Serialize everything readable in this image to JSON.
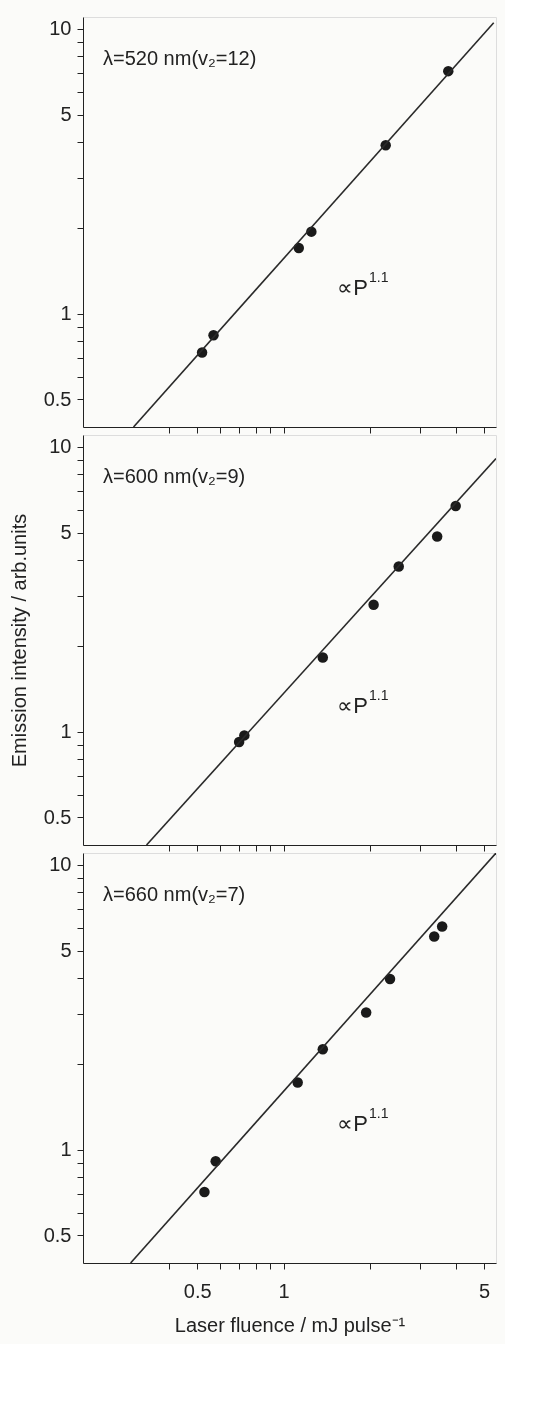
{
  "chart_data": [
    {
      "type": "scatter",
      "annotations": [
        "λ=520 nm(v₂=12)",
        "∝P$^{1.1}$"
      ],
      "log": "xy",
      "grid": false,
      "tick_labels": "y",
      "xlim": [
        0.2,
        5.5
      ],
      "ylim": [
        0.4,
        11
      ],
      "xticks": [
        {
          "value": 0.4,
          "label": null
        },
        0.5,
        {
          "value": 0.6,
          "label": null
        },
        {
          "value": 0.7,
          "label": null
        },
        {
          "value": 0.8,
          "label": null
        },
        {
          "value": 0.9,
          "label": null
        },
        1,
        {
          "value": 2,
          "label": null
        },
        {
          "value": 3,
          "label": null
        },
        {
          "value": 4,
          "label": null
        },
        5
      ],
      "yticks": [
        0.5,
        {
          "value": 0.6,
          "label": null
        },
        {
          "value": 0.7,
          "label": null
        },
        {
          "value": 0.8,
          "label": null
        },
        {
          "value": 0.9,
          "label": null
        },
        1,
        {
          "value": 2,
          "label": null
        },
        {
          "value": 3,
          "label": null
        },
        {
          "value": 4,
          "label": null
        },
        5,
        {
          "value": 6,
          "label": null
        },
        {
          "value": 7,
          "label": null
        },
        {
          "value": 8,
          "label": null
        },
        {
          "value": 9,
          "label": null
        },
        10
      ],
      "series": [
        {
          "marker": "circle",
          "color": "#1a1a1a",
          "x": [
            0.52,
            0.57,
            1.13,
            1.25,
            2.27,
            3.75
          ],
          "values": [
            0.73,
            0.84,
            1.7,
            1.94,
            3.9,
            7.1
          ]
        },
        {
          "type": "line",
          "marker": "none",
          "color": "#2a2a2a",
          "x": [
            0.3,
            5.4
          ],
          "values": [
            0.4,
            10.5
          ]
        }
      ]
    },
    {
      "type": "scatter",
      "ylabel": "Emission intensity / arb.units",
      "annotations": [
        "λ=600 nm(v₂=9)",
        "∝P$^{1.1}$"
      ],
      "log": "xy",
      "grid": false,
      "tick_labels": "y",
      "xlim": [
        0.2,
        5.5
      ],
      "ylim": [
        0.4,
        11
      ],
      "xticks": [
        {
          "value": 0.4,
          "label": null
        },
        0.5,
        {
          "value": 0.6,
          "label": null
        },
        {
          "value": 0.7,
          "label": null
        },
        {
          "value": 0.8,
          "label": null
        },
        {
          "value": 0.9,
          "label": null
        },
        1,
        {
          "value": 2,
          "label": null
        },
        {
          "value": 3,
          "label": null
        },
        {
          "value": 4,
          "label": null
        },
        5
      ],
      "yticks": [
        0.5,
        {
          "value": 0.6,
          "label": null
        },
        {
          "value": 0.7,
          "label": null
        },
        {
          "value": 0.8,
          "label": null
        },
        {
          "value": 0.9,
          "label": null
        },
        1,
        {
          "value": 2,
          "label": null
        },
        {
          "value": 3,
          "label": null
        },
        {
          "value": 4,
          "label": null
        },
        5,
        {
          "value": 6,
          "label": null
        },
        {
          "value": 7,
          "label": null
        },
        {
          "value": 8,
          "label": null
        },
        {
          "value": 9,
          "label": null
        },
        10
      ],
      "series": [
        {
          "marker": "circle",
          "color": "#1a1a1a",
          "x": [
            0.7,
            0.73,
            1.37,
            2.06,
            2.52,
            3.43,
            3.98
          ],
          "values": [
            0.92,
            0.97,
            1.82,
            2.79,
            3.8,
            4.84,
            6.2
          ]
        },
        {
          "type": "line",
          "marker": "none",
          "color": "#2a2a2a",
          "x": [
            0.333,
            5.5
          ],
          "values": [
            0.4,
            9.1
          ]
        }
      ]
    },
    {
      "type": "scatter",
      "xlabel": "Laser fluence / mJ pulse⁻¹",
      "annotations": [
        "λ=660 nm(v₂=7)",
        "∝P$^{1.1}$"
      ],
      "log": "xy",
      "grid": false,
      "xlim": [
        0.2,
        5.5
      ],
      "ylim": [
        0.4,
        11
      ],
      "xticks": [
        {
          "value": 0.4,
          "label": null
        },
        0.5,
        {
          "value": 0.6,
          "label": null
        },
        {
          "value": 0.7,
          "label": null
        },
        {
          "value": 0.8,
          "label": null
        },
        {
          "value": 0.9,
          "label": null
        },
        1,
        {
          "value": 2,
          "label": null
        },
        {
          "value": 3,
          "label": null
        },
        {
          "value": 4,
          "label": null
        },
        5
      ],
      "yticks": [
        0.5,
        {
          "value": 0.6,
          "label": null
        },
        {
          "value": 0.7,
          "label": null
        },
        {
          "value": 0.8,
          "label": null
        },
        {
          "value": 0.9,
          "label": null
        },
        1,
        {
          "value": 2,
          "label": null
        },
        {
          "value": 3,
          "label": null
        },
        {
          "value": 4,
          "label": null
        },
        5,
        {
          "value": 6,
          "label": null
        },
        {
          "value": 7,
          "label": null
        },
        {
          "value": 8,
          "label": null
        },
        {
          "value": 9,
          "label": null
        },
        10
      ],
      "series": [
        {
          "marker": "circle",
          "color": "#1a1a1a",
          "x": [
            0.53,
            0.58,
            1.12,
            1.37,
            1.94,
            2.35,
            3.35,
            3.57
          ],
          "values": [
            0.71,
            0.91,
            1.72,
            2.25,
            3.03,
            3.97,
            5.6,
            6.07
          ]
        },
        {
          "type": "line",
          "marker": "none",
          "color": "#2a2a2a",
          "x": [
            0.293,
            5.5
          ],
          "values": [
            0.4,
            11
          ]
        }
      ]
    }
  ]
}
